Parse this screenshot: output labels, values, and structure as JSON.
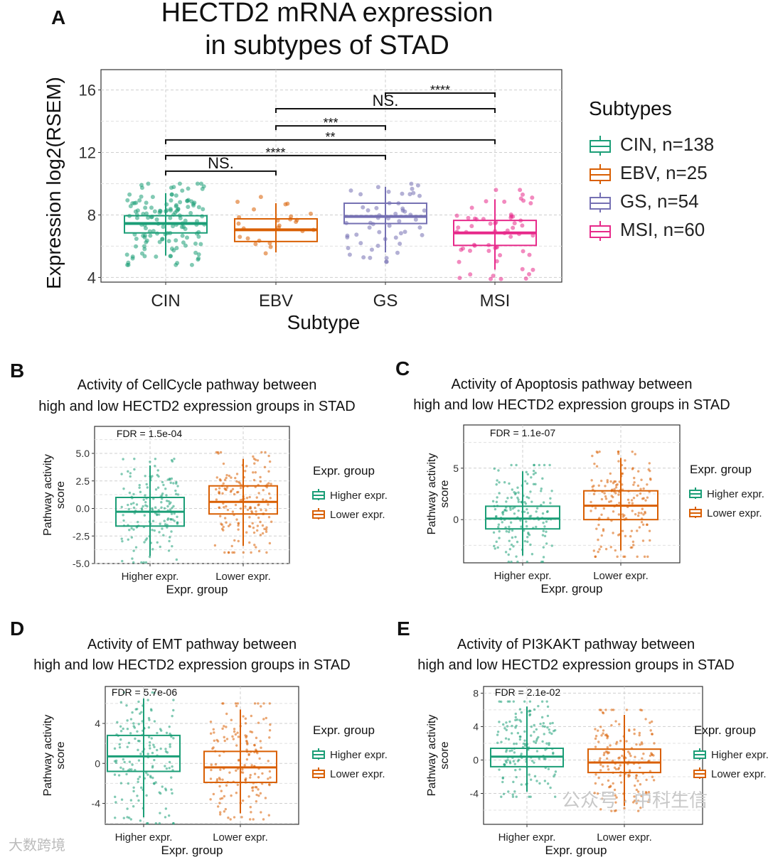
{
  "watermarks": {
    "left": "大数跨境",
    "right": "公众号 · 中科生信"
  },
  "chart_data": [
    {
      "panel": "A",
      "type": "box",
      "title": [
        "HECTD2 mRNA expression",
        "in subtypes of STAD"
      ],
      "xlabel": "Subtype",
      "ylabel": "Expression log2(RSEM)",
      "ylim": [
        3.7,
        17.3
      ],
      "yticks": [
        4,
        8,
        12,
        16
      ],
      "yticklabels": [
        "4",
        "8",
        "12",
        "16"
      ],
      "yminor": [
        6,
        10,
        14
      ],
      "categories": [
        "CIN",
        "EBV",
        "GS",
        "MSI"
      ],
      "colors": [
        "#1b9e77",
        "#d95f02",
        "#7570b3",
        "#e7298a"
      ],
      "boxes": [
        {
          "min": 5.4,
          "q1": 6.85,
          "median": 7.45,
          "q3": 7.95,
          "max": 9.4,
          "n": 138
        },
        {
          "min": 5.6,
          "q1": 6.3,
          "median": 7.05,
          "q3": 7.75,
          "max": 8.75,
          "n": 25
        },
        {
          "min": 5.6,
          "q1": 7.45,
          "median": 7.9,
          "q3": 8.75,
          "max": 9.8,
          "n": 54
        },
        {
          "min": 4.5,
          "q1": 6.05,
          "median": 6.85,
          "q3": 7.65,
          "max": 9.0,
          "n": 60
        }
      ],
      "comparisons": [
        {
          "from": 0,
          "to": 1,
          "y": 10.8,
          "label": "NS."
        },
        {
          "from": 0,
          "to": 2,
          "y": 11.8,
          "label": "****"
        },
        {
          "from": 0,
          "to": 3,
          "y": 12.8,
          "label": "**"
        },
        {
          "from": 1,
          "to": 2,
          "y": 13.7,
          "label": "***"
        },
        {
          "from": 1,
          "to": 3,
          "y": 14.8,
          "label": "NS."
        },
        {
          "from": 2,
          "to": 3,
          "y": 15.8,
          "label": "****"
        }
      ],
      "legend": {
        "title": "Subtypes",
        "position": "right",
        "entries": [
          "CIN, n=138",
          "EBV, n=25",
          "GS, n=54",
          "MSI, n=60"
        ]
      }
    },
    {
      "panel": "B",
      "type": "box",
      "title": [
        "Activity of CellCycle pathway between",
        "high and low HECTD2 expression groups in STAD"
      ],
      "annotation": "FDR = 1.5e-04",
      "xlabel": "Expr. group",
      "ylabel": [
        "Pathway activity",
        "score"
      ],
      "ylim": [
        -5.0,
        7.45
      ],
      "yticks": [
        -5,
        -2.5,
        0,
        2.5,
        5
      ],
      "yticklabels": [
        "-5.0",
        "-2.5",
        "0.0",
        "2.5",
        "5.0"
      ],
      "yminor": [
        -3.75,
        -1.25,
        1.25,
        3.75,
        6.25
      ],
      "categories": [
        "Higher expr.",
        "Lower expr."
      ],
      "colors": [
        "#1b9e77",
        "#d95f02"
      ],
      "boxes": [
        {
          "min": -4.3,
          "q1": -1.6,
          "median": -0.3,
          "q3": 1.0,
          "max": 3.9
        },
        {
          "min": -3.4,
          "q1": -0.5,
          "median": 0.6,
          "q3": 2.05,
          "max": 4.5
        }
      ],
      "legend": {
        "title": "Expr. group",
        "position": "right",
        "entries": [
          "Higher expr.",
          "Lower expr."
        ]
      }
    },
    {
      "panel": "C",
      "type": "box",
      "title": [
        "Activity of Apoptosis pathway between",
        "high and low HECTD2 expression groups in STAD"
      ],
      "annotation": "FDR = 1.1e-07",
      "xlabel": "Expr. group",
      "ylabel": [
        "Pathway activity",
        "score"
      ],
      "ylim": [
        -4.2,
        9.2
      ],
      "yticks": [
        0,
        5
      ],
      "yticklabels": [
        "0",
        "5"
      ],
      "yminor": [
        -2.5,
        2.5,
        7.5
      ],
      "categories": [
        "Higher expr.",
        "Lower expr."
      ],
      "colors": [
        "#1b9e77",
        "#d95f02"
      ],
      "boxes": [
        {
          "min": -3.5,
          "q1": -0.9,
          "median": 0.1,
          "q3": 1.3,
          "max": 4.7
        },
        {
          "min": -3.0,
          "q1": 0.0,
          "median": 1.35,
          "q3": 2.8,
          "max": 6.0
        }
      ],
      "legend": {
        "title": "Expr. group",
        "position": "right",
        "entries": [
          "Higher expr.",
          "Lower expr."
        ]
      }
    },
    {
      "panel": "D",
      "type": "box",
      "title": [
        "Activity of EMT pathway between",
        "high and low HECTD2 expression groups in STAD"
      ],
      "annotation": "FDR = 5.7e-06",
      "xlabel": "Expr. group",
      "ylabel": [
        "Pathway activity",
        "score"
      ],
      "ylim": [
        -6.1,
        7.7
      ],
      "yticks": [
        -4,
        0,
        4
      ],
      "yticklabels": [
        "-4",
        "0",
        "4"
      ],
      "yminor": [
        -6,
        -2,
        2,
        6
      ],
      "categories": [
        "Higher expr.",
        "Lower expr."
      ],
      "colors": [
        "#1b9e77",
        "#d95f02"
      ],
      "boxes": [
        {
          "min": -5.4,
          "q1": -0.8,
          "median": 0.7,
          "q3": 2.8,
          "max": 6.5
        },
        {
          "min": -5.0,
          "q1": -1.9,
          "median": -0.4,
          "q3": 1.2,
          "max": 5.4
        }
      ],
      "legend": {
        "title": "Expr. group",
        "position": "right",
        "entries": [
          "Higher expr.",
          "Lower expr."
        ]
      }
    },
    {
      "panel": "E",
      "type": "box",
      "title": [
        "Activity of PI3KAKT pathway between",
        "high and low HECTD2 expression groups in STAD"
      ],
      "annotation": "FDR = 2.1e-02",
      "xlabel": "Expr. group",
      "ylabel": [
        "Pathway activity",
        "score"
      ],
      "ylim": [
        -7.7,
        8.8
      ],
      "yticks": [
        -4,
        0,
        4,
        8
      ],
      "yticklabels": [
        "-4",
        "0",
        "4",
        "8"
      ],
      "yminor": [
        -6,
        -2,
        2,
        6
      ],
      "categories": [
        "Higher expr.",
        "Lower expr."
      ],
      "colors": [
        "#1b9e77",
        "#d95f02"
      ],
      "boxes": [
        {
          "min": -3.8,
          "q1": -0.8,
          "median": 0.4,
          "q3": 1.4,
          "max": 6.4
        },
        {
          "min": -5.5,
          "q1": -1.5,
          "median": -0.3,
          "q3": 1.3,
          "max": 5.4
        }
      ],
      "legend": {
        "title": "Expr. group",
        "position": "right",
        "entries": [
          "Higher expr.",
          "Lower expr."
        ]
      }
    }
  ]
}
